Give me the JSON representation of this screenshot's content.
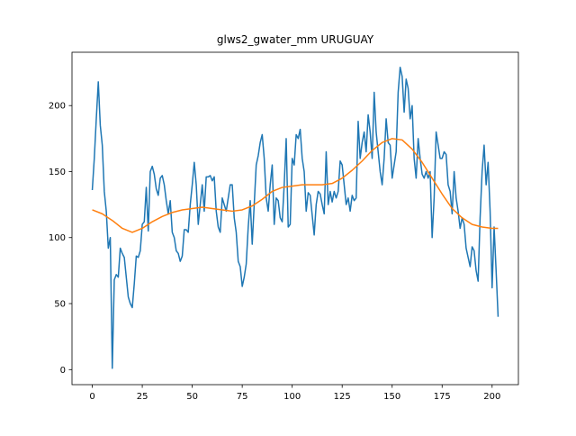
{
  "chart_data": {
    "type": "line",
    "title": "glws2_gwater_mm URUGUAY",
    "xlim": [
      -10.15,
      213.15
    ],
    "ylim": [
      -11.4,
      240.4
    ],
    "xticks": [
      0,
      25,
      50,
      75,
      100,
      125,
      150,
      175,
      200
    ],
    "yticks": [
      0,
      50,
      100,
      150,
      200
    ],
    "series": [
      {
        "color": "#1f77b4",
        "x": [
          0,
          1,
          2,
          3,
          4,
          5,
          6,
          7,
          8,
          9,
          10,
          11,
          12,
          13,
          14,
          15,
          16,
          17,
          18,
          19,
          20,
          21,
          22,
          23,
          24,
          25,
          26,
          27,
          28,
          29,
          30,
          31,
          32,
          33,
          34,
          35,
          36,
          37,
          38,
          39,
          40,
          41,
          42,
          43,
          44,
          45,
          46,
          47,
          48,
          49,
          50,
          51,
          52,
          53,
          54,
          55,
          56,
          57,
          58,
          59,
          60,
          61,
          62,
          63,
          64,
          65,
          66,
          67,
          68,
          69,
          70,
          71,
          72,
          73,
          74,
          75,
          76,
          77,
          78,
          79,
          80,
          81,
          82,
          83,
          84,
          85,
          86,
          87,
          88,
          89,
          90,
          91,
          92,
          93,
          94,
          95,
          96,
          97,
          98,
          99,
          100,
          101,
          102,
          103,
          104,
          105,
          106,
          107,
          108,
          109,
          110,
          111,
          112,
          113,
          114,
          115,
          116,
          117,
          118,
          119,
          120,
          121,
          122,
          123,
          124,
          125,
          126,
          127,
          128,
          129,
          130,
          131,
          132,
          133,
          134,
          135,
          136,
          137,
          138,
          139,
          140,
          141,
          142,
          143,
          144,
          145,
          146,
          147,
          148,
          149,
          150,
          151,
          152,
          153,
          154,
          155,
          156,
          157,
          158,
          159,
          160,
          161,
          162,
          163,
          164,
          165,
          166,
          167,
          168,
          169,
          170,
          171,
          172,
          173,
          174,
          175,
          176,
          177,
          178,
          179,
          180,
          181,
          182,
          183,
          184,
          185,
          186,
          187,
          188,
          189,
          190,
          191,
          192,
          193,
          194,
          195,
          196,
          197,
          198,
          199,
          200,
          201,
          202,
          203
        ],
        "values": [
          136,
          160,
          190,
          218,
          185,
          170,
          135,
          120,
          92,
          100,
          1,
          68,
          72,
          70,
          92,
          88,
          85,
          70,
          55,
          50,
          47,
          65,
          86,
          85,
          90,
          110,
          112,
          138,
          105,
          150,
          154,
          148,
          137,
          132,
          145,
          147,
          140,
          128,
          118,
          128,
          104,
          100,
          90,
          88,
          82,
          86,
          106,
          106,
          104,
          125,
          140,
          157,
          140,
          110,
          125,
          140,
          120,
          146,
          146,
          147,
          143,
          146,
          120,
          108,
          104,
          130,
          125,
          120,
          130,
          140,
          140,
          115,
          104,
          82,
          78,
          63,
          70,
          80,
          108,
          128,
          95,
          125,
          155,
          162,
          172,
          178,
          160,
          130,
          120,
          140,
          155,
          110,
          130,
          128,
          115,
          112,
          140,
          175,
          108,
          110,
          160,
          155,
          178,
          175,
          182,
          160,
          150,
          120,
          134,
          132,
          117,
          102,
          125,
          135,
          133,
          125,
          118,
          165,
          125,
          135,
          127,
          135,
          130,
          135,
          158,
          155,
          140,
          125,
          130,
          120,
          132,
          128,
          130,
          188,
          160,
          172,
          180,
          165,
          193,
          180,
          160,
          210,
          180,
          165,
          150,
          140,
          160,
          190,
          172,
          170,
          145,
          155,
          165,
          210,
          229,
          222,
          195,
          220,
          213,
          190,
          200,
          160,
          145,
          175,
          160,
          148,
          145,
          150,
          145,
          150,
          100,
          130,
          180,
          170,
          160,
          160,
          165,
          163,
          140,
          135,
          118,
          150,
          130,
          120,
          107,
          115,
          110,
          92,
          85,
          78,
          93,
          90,
          75,
          67,
          115,
          150,
          170,
          140,
          157,
          120,
          62,
          108,
          75,
          40
        ]
      },
      {
        "color": "#ff7f0e",
        "x": [
          0,
          5,
          10,
          15,
          20,
          25,
          30,
          35,
          40,
          45,
          50,
          55,
          60,
          65,
          70,
          75,
          80,
          85,
          90,
          95,
          100,
          105,
          110,
          115,
          120,
          125,
          130,
          135,
          140,
          145,
          150,
          155,
          160,
          165,
          170,
          175,
          180,
          185,
          190,
          195,
          200,
          203
        ],
        "values": [
          121,
          118,
          113,
          107,
          104,
          107,
          112,
          116,
          119,
          121,
          122,
          123,
          122,
          121,
          120,
          121,
          124,
          129,
          135,
          138,
          139,
          140,
          140,
          140,
          141,
          145,
          151,
          158,
          166,
          172,
          175,
          174,
          167,
          157,
          145,
          133,
          122,
          115,
          110,
          108,
          107,
          107
        ]
      }
    ]
  }
}
